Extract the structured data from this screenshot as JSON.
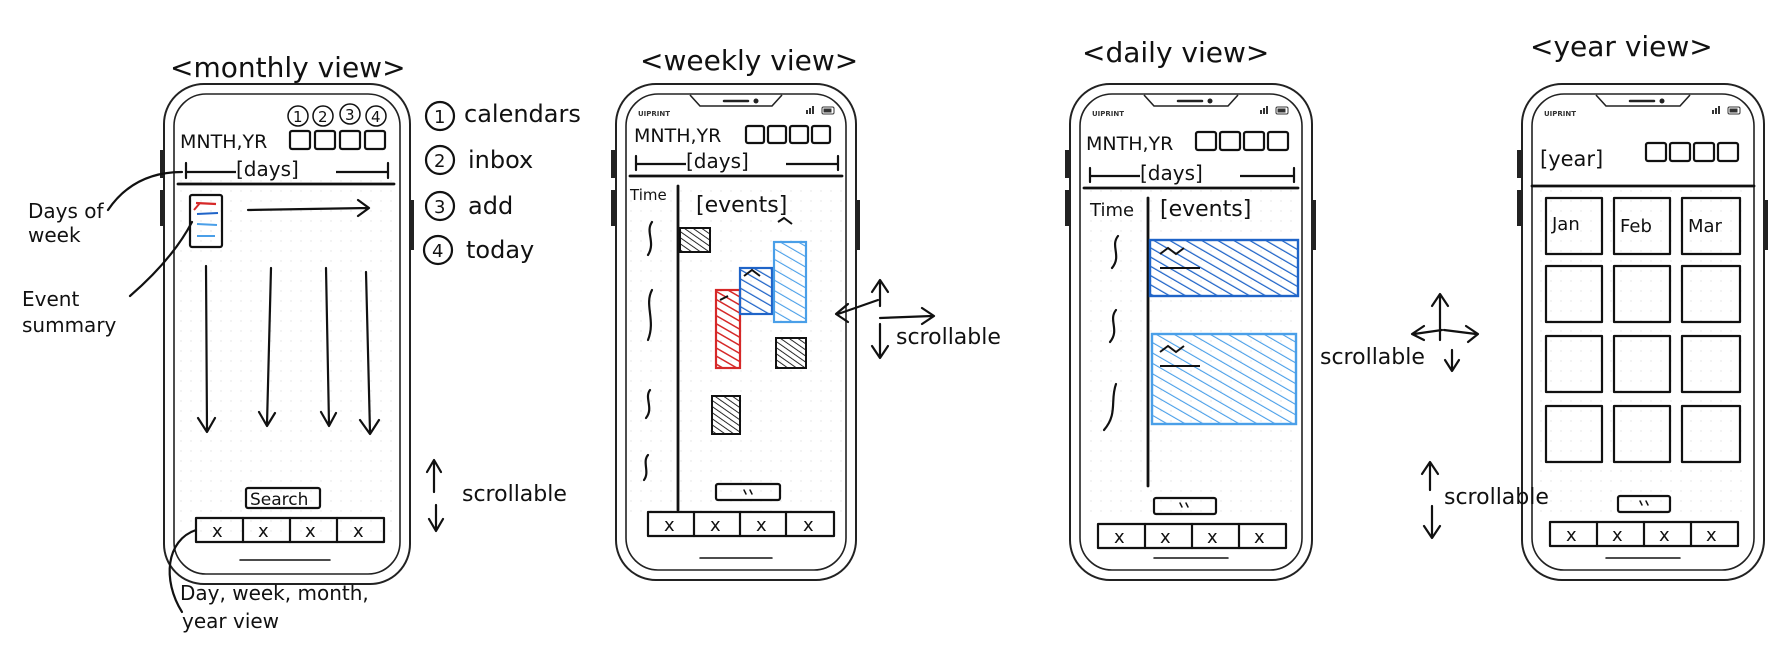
{
  "views": {
    "monthly": {
      "title": "<monthly view>",
      "header": "MNTH,YR",
      "days_bar": "[days]",
      "icon_numbers": [
        "1",
        "2",
        "3",
        "4"
      ],
      "search_label": "Search",
      "tab_marks": [
        "x",
        "x",
        "x",
        "x"
      ]
    },
    "weekly": {
      "title": "<weekly view>",
      "brand": "UIPRINT",
      "header": "MNTH,YR",
      "days_bar": "[days]",
      "time_label": "Time",
      "events_label": "[events]",
      "tab_marks": [
        "x",
        "x",
        "x",
        "x"
      ]
    },
    "daily": {
      "title": "<daily view>",
      "brand": "UIPRINT",
      "header": "MNTH,YR",
      "days_bar": "[days]",
      "time_label": "Time",
      "events_label": "[events]",
      "tab_marks": [
        "x",
        "x",
        "x",
        "x"
      ]
    },
    "year": {
      "title": "<year view>",
      "brand": "UIPRINT",
      "header": "[year]",
      "months": [
        "Jan",
        "Feb",
        "Mar"
      ],
      "tab_marks": [
        "x",
        "x",
        "x",
        "x"
      ]
    }
  },
  "legend": [
    {
      "num": "1",
      "label": "calendars"
    },
    {
      "num": "2",
      "label": "inbox"
    },
    {
      "num": "3",
      "label": "add"
    },
    {
      "num": "4",
      "label": "today"
    }
  ],
  "annotations": {
    "days_of_week": [
      "Days of",
      "week"
    ],
    "event_summary": [
      "Event",
      "summary"
    ],
    "scrollable": "scrollable",
    "bottom_note": [
      "Day, week, month,",
      "year view"
    ]
  },
  "colors": {
    "red": "#d62828",
    "blue_dark": "#1f64c8",
    "blue_light": "#4a9fe8"
  }
}
